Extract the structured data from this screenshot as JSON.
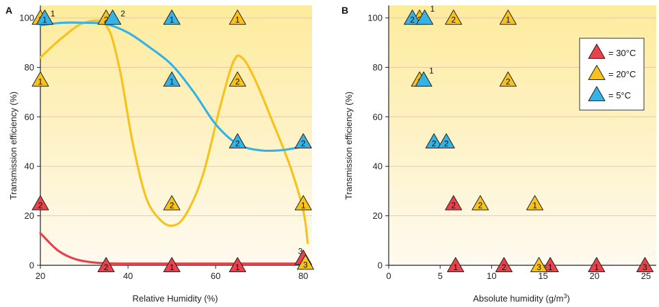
{
  "colors": {
    "red": "#e9424b",
    "yellow": "#f6c21b",
    "blue": "#35b3e4",
    "bg_top": "#fdeb9c",
    "bg_bottom": "#fffaf0",
    "grid": "#e8b9a0"
  },
  "chart_data": [
    {
      "type": "scatter",
      "panel_label": "A",
      "xlabel": "Relative Humidity (%)",
      "ylabel": "Transmission efficiency (%)",
      "xlim": [
        20,
        82
      ],
      "ylim": [
        0,
        105
      ],
      "xticks": [
        20,
        40,
        60,
        80
      ],
      "yticks": [
        0,
        20,
        40,
        60,
        80,
        100
      ],
      "xtick_labels": [
        "20",
        "40",
        "60",
        "80"
      ],
      "ytick_labels": [
        "0",
        "20",
        "40",
        "60",
        "80",
        "100"
      ],
      "grid": "horizontal",
      "series": [
        {
          "temp": "30°C",
          "color": "red",
          "points": [
            {
              "x": 20,
              "y": 25,
              "label": "2"
            },
            {
              "x": 35,
              "y": 0,
              "label": "2"
            },
            {
              "x": 50,
              "y": 0,
              "label": "1"
            },
            {
              "x": 65,
              "y": 0,
              "label": "1"
            },
            {
              "x": 80,
              "y": 3,
              "label": ""
            }
          ],
          "curve": [
            [
              20,
              13
            ],
            [
              24,
              6
            ],
            [
              28,
              2.5
            ],
            [
              33,
              1
            ],
            [
              40,
              0.7
            ],
            [
              60,
              0.7
            ],
            [
              80,
              0.7
            ]
          ]
        },
        {
          "temp": "20°C",
          "color": "yellow",
          "points": [
            {
              "x": 20,
              "y": 100,
              "label": "1"
            },
            {
              "x": 20,
              "y": 75,
              "label": "1"
            },
            {
              "x": 35,
              "y": 100,
              "label": "2"
            },
            {
              "x": 50,
              "y": 25,
              "label": "2"
            },
            {
              "x": 65,
              "y": 100,
              "label": "1"
            },
            {
              "x": 65,
              "y": 75,
              "label": "2"
            },
            {
              "x": 80,
              "y": 25,
              "label": "1"
            },
            {
              "x": 80.5,
              "y": 1,
              "label": "3"
            }
          ],
          "curve": [
            [
              20,
              84
            ],
            [
              25,
              92
            ],
            [
              30,
              98
            ],
            [
              35,
              97
            ],
            [
              38,
              80
            ],
            [
              41,
              50
            ],
            [
              44,
              28
            ],
            [
              47,
              19
            ],
            [
              50,
              16
            ],
            [
              53,
              20
            ],
            [
              57,
              36
            ],
            [
              61,
              64
            ],
            [
              64,
              82
            ],
            [
              66,
              84
            ],
            [
              69,
              75
            ],
            [
              73,
              58
            ],
            [
              77,
              40
            ],
            [
              80,
              22
            ],
            [
              81,
              9
            ]
          ]
        },
        {
          "temp": "5°C",
          "color": "blue",
          "points": [
            {
              "x": 21,
              "y": 100,
              "label": "1"
            },
            {
              "x": 36.5,
              "y": 100,
              "label": ""
            },
            {
              "x": 50,
              "y": 100,
              "label": "1"
            },
            {
              "x": 50,
              "y": 75,
              "label": "1"
            },
            {
              "x": 65,
              "y": 50,
              "label": "2"
            },
            {
              "x": 80,
              "y": 50,
              "label": "2"
            }
          ],
          "curve": [
            [
              20,
              97
            ],
            [
              25,
              98
            ],
            [
              30,
              98
            ],
            [
              35,
              97.5
            ],
            [
              40,
              94
            ],
            [
              45,
              88
            ],
            [
              50,
              81
            ],
            [
              55,
              70
            ],
            [
              60,
              57
            ],
            [
              65,
              49
            ],
            [
              70,
              46.5
            ],
            [
              75,
              46.5
            ],
            [
              80,
              48
            ]
          ]
        }
      ],
      "side_labels": [
        {
          "x": 22,
          "y": 100,
          "text": "1"
        },
        {
          "x": 38,
          "y": 100,
          "text": "2"
        },
        {
          "x": 78.5,
          "y": 4,
          "text": "3"
        }
      ]
    },
    {
      "type": "scatter",
      "panel_label": "B",
      "xlabel": "Absolute humidity (g/m",
      "xlabel_sup": "3",
      "xlabel_end": ")",
      "ylabel": "Transmission efficiency (%)",
      "xlim": [
        0,
        26
      ],
      "ylim": [
        0,
        105
      ],
      "xticks": [
        0,
        5,
        10,
        15,
        20,
        25
      ],
      "yticks": [
        0,
        20,
        40,
        60,
        80,
        100
      ],
      "xtick_labels": [
        "0",
        "5",
        "10",
        "15",
        "20",
        "25"
      ],
      "ytick_labels": [
        "0",
        "20",
        "40",
        "60",
        "80",
        "100"
      ],
      "grid": "horizontal",
      "series": [
        {
          "temp": "30°C",
          "color": "red",
          "points": [
            {
              "x": 6.3,
              "y": 25,
              "label": "2"
            },
            {
              "x": 6.5,
              "y": 0,
              "label": "1"
            },
            {
              "x": 11.2,
              "y": 0,
              "label": "2"
            },
            {
              "x": 15.7,
              "y": 0,
              "label": "1"
            },
            {
              "x": 20.2,
              "y": 0,
              "label": "1"
            },
            {
              "x": 24.9,
              "y": 0,
              "label": "3"
            }
          ]
        },
        {
          "temp": "20°C",
          "color": "yellow",
          "points": [
            {
              "x": 3.0,
              "y": 100,
              "label": "2"
            },
            {
              "x": 6.3,
              "y": 100,
              "label": "2"
            },
            {
              "x": 11.6,
              "y": 100,
              "label": "1"
            },
            {
              "x": 3.0,
              "y": 75,
              "label": "1"
            },
            {
              "x": 11.6,
              "y": 75,
              "label": "2"
            },
            {
              "x": 8.9,
              "y": 25,
              "label": "2"
            },
            {
              "x": 14.2,
              "y": 25,
              "label": "1"
            },
            {
              "x": 14.6,
              "y": 0,
              "label": "3"
            }
          ]
        },
        {
          "temp": "5°C",
          "color": "blue",
          "points": [
            {
              "x": 2.3,
              "y": 100,
              "label": "2"
            },
            {
              "x": 3.5,
              "y": 100,
              "label": ""
            },
            {
              "x": 3.4,
              "y": 75,
              "label": ""
            },
            {
              "x": 4.4,
              "y": 50,
              "label": "2"
            },
            {
              "x": 5.6,
              "y": 50,
              "label": "2"
            }
          ]
        }
      ],
      "side_labels": [
        {
          "x": 3.9,
          "y": 102,
          "text": "1"
        },
        {
          "x": 3.8,
          "y": 77,
          "text": "1"
        }
      ],
      "legend": {
        "placement": "top-right",
        "entries": [
          {
            "color": "red",
            "label": "= 30°C"
          },
          {
            "color": "yellow",
            "label": "= 20°C"
          },
          {
            "color": "blue",
            "label": "= 5°C"
          }
        ]
      }
    }
  ]
}
